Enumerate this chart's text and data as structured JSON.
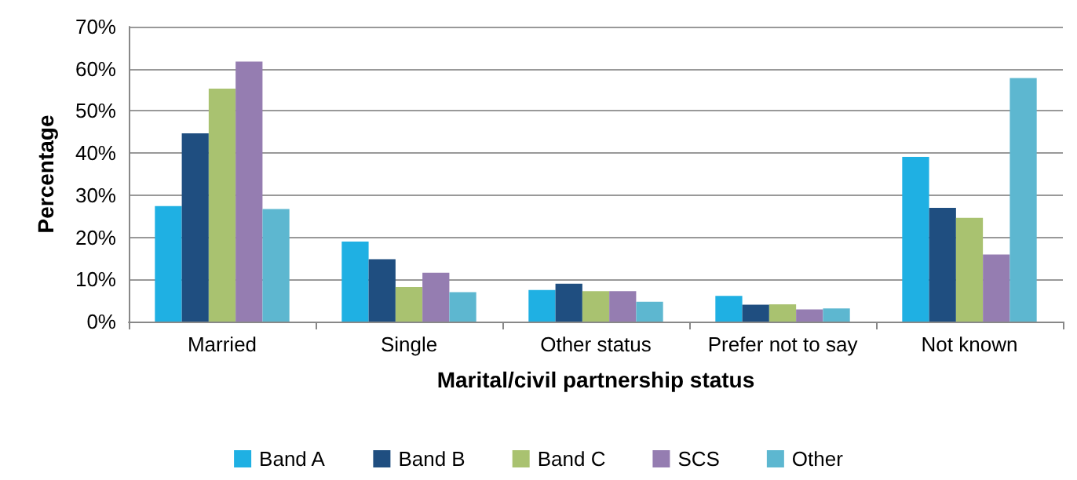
{
  "chart_data": {
    "type": "bar",
    "xlabel": "Marital/civil partnership status",
    "ylabel": "Percentage",
    "categories": [
      "Married",
      "Single",
      "Other status",
      "Prefer not to say",
      "Not known"
    ],
    "series": [
      {
        "name": "Band A",
        "color": "#1fb0e3",
        "values": [
          27.4,
          19.0,
          7.5,
          6.1,
          39.1
        ]
      },
      {
        "name": "Band B",
        "color": "#1f4e80",
        "values": [
          44.7,
          14.8,
          9.0,
          4.0,
          27.0
        ]
      },
      {
        "name": "Band C",
        "color": "#a9c270",
        "values": [
          55.3,
          8.2,
          7.2,
          4.1,
          24.6
        ]
      },
      {
        "name": "SCS",
        "color": "#957db1",
        "values": [
          61.7,
          11.6,
          7.2,
          2.9,
          15.9
        ]
      },
      {
        "name": "Other",
        "color": "#5db7d0",
        "values": [
          26.7,
          7.0,
          4.7,
          3.1,
          57.8
        ]
      }
    ],
    "ylim": [
      0,
      70
    ],
    "yticks": [
      {
        "value": 0,
        "label": "0%"
      },
      {
        "value": 10,
        "label": "10%"
      },
      {
        "value": 20,
        "label": "20%"
      },
      {
        "value": 30,
        "label": "30%"
      },
      {
        "value": 40,
        "label": "40%"
      },
      {
        "value": 50,
        "label": "50%"
      },
      {
        "value": 60,
        "label": "60%"
      },
      {
        "value": 70,
        "label": "70%"
      }
    ],
    "grid": "y",
    "legend": "bottom"
  }
}
